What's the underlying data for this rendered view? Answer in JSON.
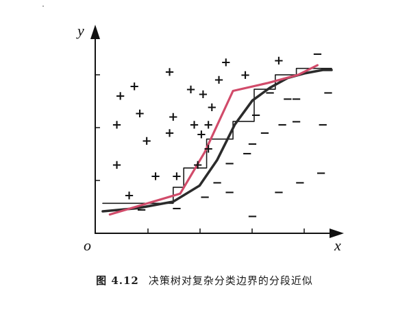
{
  "axes": {
    "origin_label": "o",
    "x_label": "x",
    "y_label": "y"
  },
  "caption": {
    "figure_number": "图 4.12",
    "text": "决策树对复杂分类边界的分段近似"
  },
  "samples": {
    "positive_symbol": "+",
    "negative_symbol": "−",
    "positive": [
      [
        0.1,
        0.78
      ],
      [
        0.18,
        0.84
      ],
      [
        0.21,
        0.67
      ],
      [
        0.08,
        0.6
      ],
      [
        0.25,
        0.5
      ],
      [
        0.38,
        0.93
      ],
      [
        0.4,
        0.65
      ],
      [
        0.38,
        0.55
      ],
      [
        0.5,
        0.82
      ],
      [
        0.52,
        0.6
      ],
      [
        0.56,
        0.54
      ],
      [
        0.6,
        0.6
      ],
      [
        0.62,
        0.71
      ],
      [
        0.66,
        0.88
      ],
      [
        0.7,
        0.99
      ],
      [
        0.08,
        0.35
      ],
      [
        0.15,
        0.16
      ],
      [
        0.3,
        0.28
      ],
      [
        0.42,
        0.28
      ],
      [
        0.54,
        0.35
      ],
      [
        0.6,
        0.45
      ],
      [
        0.57,
        0.79
      ],
      [
        0.81,
        0.91
      ],
      [
        1.0,
        1.0
      ]
    ],
    "negative": [
      [
        0.22,
        0.07
      ],
      [
        0.42,
        0.08
      ],
      [
        0.58,
        0.15
      ],
      [
        0.65,
        0.24
      ],
      [
        0.72,
        0.36
      ],
      [
        0.82,
        0.42
      ],
      [
        0.85,
        0.48
      ],
      [
        0.92,
        0.55
      ],
      [
        0.87,
        0.66
      ],
      [
        0.95,
        0.8
      ],
      [
        1.05,
        0.76
      ],
      [
        1.02,
        0.6
      ],
      [
        1.1,
        0.76
      ],
      [
        1.0,
        0.18
      ],
      [
        1.12,
        0.24
      ],
      [
        1.24,
        0.3
      ],
      [
        0.85,
        0.03
      ],
      [
        1.25,
        0.6
      ],
      [
        1.28,
        0.8
      ],
      [
        1.22,
        1.04
      ],
      [
        0.72,
        0.18
      ],
      [
        1.1,
        0.62
      ]
    ]
  },
  "boundaries": {
    "true_boundary": {
      "color": "#2b2b2b",
      "points": [
        [
          0.0,
          0.06
        ],
        [
          0.2,
          0.08
        ],
        [
          0.4,
          0.12
        ],
        [
          0.55,
          0.22
        ],
        [
          0.65,
          0.38
        ],
        [
          0.75,
          0.6
        ],
        [
          0.85,
          0.75
        ],
        [
          0.95,
          0.83
        ],
        [
          1.05,
          0.89
        ],
        [
          1.15,
          0.92
        ],
        [
          1.25,
          0.94
        ],
        [
          1.3,
          0.94
        ]
      ]
    },
    "tree_approximation": {
      "color": "#1a1a1a",
      "points": [
        [
          0.0,
          0.11
        ],
        [
          0.4,
          0.11
        ],
        [
          0.4,
          0.21
        ],
        [
          0.46,
          0.21
        ],
        [
          0.46,
          0.33
        ],
        [
          0.59,
          0.33
        ],
        [
          0.59,
          0.51
        ],
        [
          0.74,
          0.51
        ],
        [
          0.74,
          0.62
        ],
        [
          0.86,
          0.62
        ],
        [
          0.86,
          0.82
        ],
        [
          0.98,
          0.82
        ],
        [
          0.98,
          0.91
        ],
        [
          1.1,
          0.91
        ],
        [
          1.1,
          0.95
        ],
        [
          1.3,
          0.95
        ]
      ]
    },
    "multivariate_tree": {
      "color": "#d14b6a",
      "points": [
        [
          0.04,
          0.04
        ],
        [
          0.44,
          0.17
        ],
        [
          0.58,
          0.43
        ],
        [
          0.74,
          0.81
        ],
        [
          0.94,
          0.86
        ],
        [
          1.11,
          0.91
        ],
        [
          1.22,
          0.97
        ]
      ]
    }
  },
  "colors": {
    "axis": "#111111",
    "text": "#111111"
  }
}
